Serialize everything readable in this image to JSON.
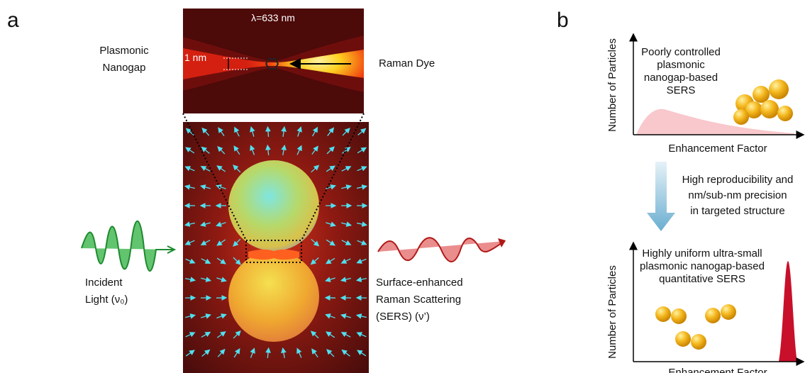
{
  "panel_a": {
    "label": "a",
    "wavelength": "λ=633 nm",
    "gap_size": "1 nm",
    "nanogap_label": [
      "Plasmonic",
      "Nanogap"
    ],
    "dye_label": "Raman Dye",
    "incident_label": [
      "Incident",
      "Light (ν₀)"
    ],
    "scattering_label": [
      "Surface-enhanced",
      "Raman Scattering",
      "(SERS) (ν’)"
    ]
  },
  "panel_b": {
    "label": "b",
    "top_plot": {
      "y_axis": "Number of Particles",
      "x_axis": "Enhancement Factor",
      "caption": [
        "Poorly controlled",
        "plasmonic",
        "nanogap-based",
        "SERS"
      ]
    },
    "transition": [
      "High reproducibility and",
      "nm/sub-nm precision",
      "in targeted structure"
    ],
    "bottom_plot": {
      "y_axis": "Number of Particles",
      "x_axis": "Enhancement Factor",
      "caption": [
        "Highly uniform ultra-small",
        "plasmonic nanogap-based",
        "quantitative SERS"
      ]
    }
  }
}
